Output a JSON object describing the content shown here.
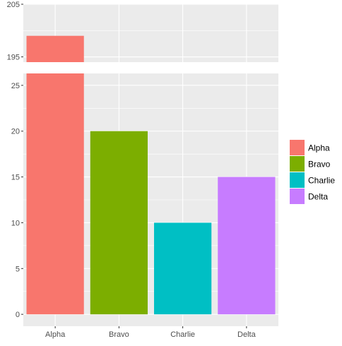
{
  "chart_data": {
    "type": "bar",
    "categories": [
      "Alpha",
      "Bravo",
      "Charlie",
      "Delta"
    ],
    "values": [
      199,
      20,
      10,
      15
    ],
    "colors": [
      "#F8766D",
      "#7CAE00",
      "#00BFC4",
      "#C77CFF"
    ],
    "title": "",
    "xlabel": "",
    "ylabel": "",
    "axis_break": true,
    "upper_panel": {
      "ylim": [
        194,
        205
      ],
      "ticks": [
        195,
        205
      ],
      "tick_labels": [
        "195",
        "205"
      ]
    },
    "lower_panel": {
      "ylim": [
        -1.3,
        26.3
      ],
      "ticks": [
        0,
        5,
        10,
        15,
        20,
        25
      ],
      "tick_labels": [
        "0",
        "5",
        "10",
        "15",
        "20",
        "25"
      ]
    },
    "grid": true,
    "panel_background": "#EBEBEB",
    "grid_color": "#FFFFFF",
    "legend": {
      "position": "right",
      "entries": [
        "Alpha",
        "Bravo",
        "Charlie",
        "Delta"
      ]
    }
  }
}
